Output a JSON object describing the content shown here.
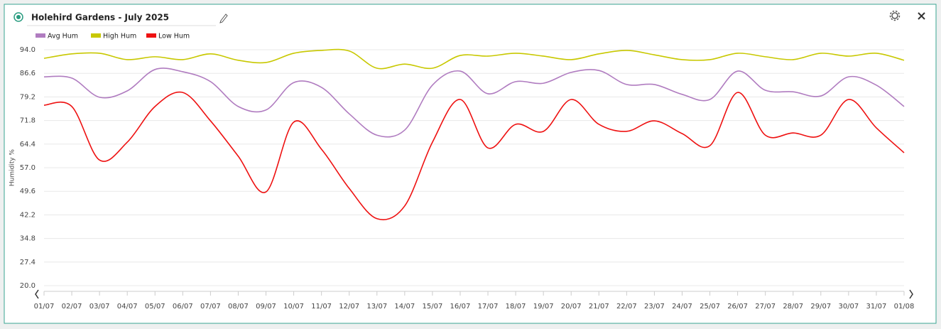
{
  "chart_data": {
    "type": "line",
    "title": "Holehird Gardens - July 2025",
    "y_label": "Humidity %",
    "categories": [
      "01/07",
      "02/07",
      "03/07",
      "04/07",
      "05/07",
      "06/07",
      "07/07",
      "08/07",
      "09/07",
      "10/07",
      "11/07",
      "12/07",
      "13/07",
      "14/07",
      "15/07",
      "16/07",
      "17/07",
      "18/07",
      "19/07",
      "20/07",
      "21/07",
      "22/07",
      "23/07",
      "24/07",
      "25/07",
      "26/07",
      "27/07",
      "28/07",
      "29/07",
      "30/07",
      "31/07",
      "01/08"
    ],
    "series": [
      {
        "name": "Avg Hum",
        "color": "#b07cc0",
        "values": [
          85.5,
          85.1,
          79.1,
          81.1,
          87.8,
          87.1,
          84.0,
          76.2,
          75.1,
          83.7,
          82.2,
          73.9,
          67.2,
          68.8,
          82.9,
          87.3,
          80.2,
          84.0,
          83.5,
          86.9,
          87.5,
          83.1,
          83.1,
          80.0,
          78.4,
          87.3,
          81.3,
          80.8,
          79.5,
          85.5,
          82.9,
          76.2
        ]
      },
      {
        "name": "High Hum",
        "color": "#c8c800",
        "values": [
          91.3,
          92.7,
          92.9,
          90.9,
          91.8,
          90.9,
          92.7,
          90.7,
          90.0,
          92.9,
          93.8,
          93.6,
          88.2,
          89.5,
          88.2,
          92.2,
          92.0,
          92.9,
          92.0,
          90.9,
          92.7,
          93.8,
          92.4,
          90.9,
          90.9,
          92.9,
          91.8,
          90.9,
          92.9,
          92.0,
          92.9,
          90.7
        ]
      },
      {
        "name": "Low Hum",
        "color": "#ee1111",
        "values": [
          76.6,
          76.2,
          59.4,
          65.0,
          76.2,
          80.6,
          71.7,
          60.6,
          49.4,
          71.3,
          62.8,
          50.5,
          41.0,
          45.0,
          65.0,
          78.4,
          63.2,
          70.6,
          68.4,
          78.4,
          70.6,
          68.4,
          71.7,
          67.7,
          63.9,
          80.6,
          67.2,
          67.9,
          67.2,
          78.4,
          69.5,
          61.7
        ]
      }
    ],
    "ylim": [
      20,
      94
    ],
    "yticks": [
      {
        "value": 20,
        "label": "20.0"
      },
      27.4,
      34.8,
      42.2,
      49.6,
      {
        "value": 57,
        "label": "57.0"
      },
      64.4,
      71.8,
      79.2,
      86.6,
      {
        "value": 94,
        "label": "94.0"
      }
    ],
    "grid": true
  }
}
